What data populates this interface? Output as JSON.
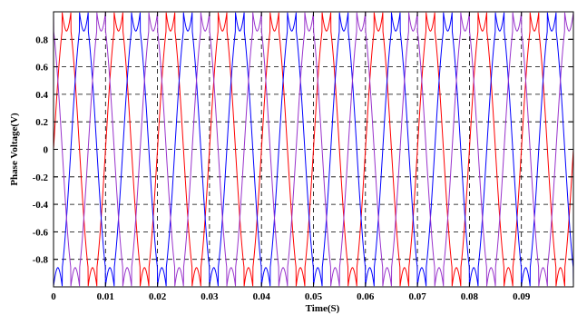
{
  "chart_data": {
    "type": "line",
    "title": "",
    "xlabel": "Time(S)",
    "ylabel": "Phase Voltage(V)",
    "xlim": [
      0,
      0.1
    ],
    "ylim": [
      -1,
      1
    ],
    "xticks": [
      "0",
      "0.01",
      "0.02",
      "0.03",
      "0.04",
      "0.05",
      "0.06",
      "0.07",
      "0.08",
      "0.09"
    ],
    "xtick_values": [
      0,
      0.01,
      0.02,
      0.03,
      0.04,
      0.05,
      0.06,
      0.07,
      0.08,
      0.09
    ],
    "yticks": [
      "0.8",
      "0.6",
      "0.4",
      "0.2",
      "0",
      "-0.2",
      "-0.4",
      "-0.6",
      "-0.8"
    ],
    "ytick_values": [
      0.8,
      0.6,
      0.4,
      0.2,
      0,
      -0.2,
      -0.4,
      -0.6,
      -0.8
    ],
    "grid": true,
    "legend": "none",
    "series": [
      {
        "color": "#ff0000",
        "frequency_hz": 100,
        "phase_deg": 0,
        "peak": 1.0,
        "dip_at_peak": 0.86
      },
      {
        "color": "#0000ff",
        "frequency_hz": 100,
        "phase_deg": -120,
        "peak": 1.0,
        "dip_at_peak": 0.86
      },
      {
        "color": "#9933cc",
        "frequency_hz": 100,
        "phase_deg": 120,
        "peak": 1.0,
        "dip_at_peak": 0.86
      }
    ]
  }
}
